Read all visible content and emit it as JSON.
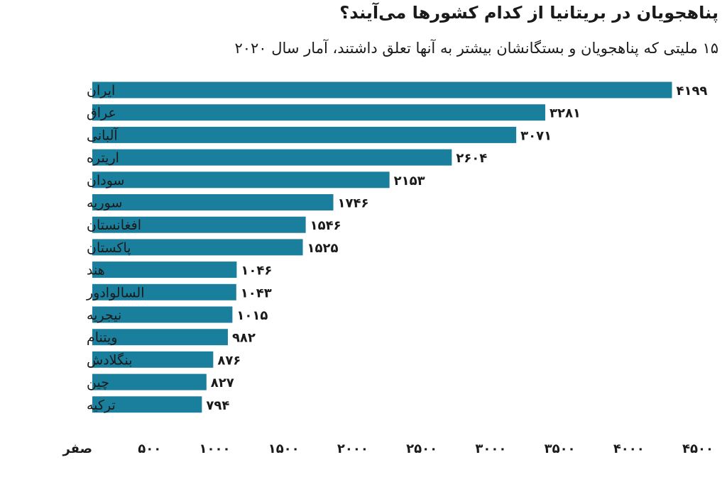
{
  "chart_data": {
    "type": "bar",
    "orientation": "horizontal",
    "title": "پناهجویان در بریتانیا از کدام کشورها می‌آیند؟",
    "subtitle": "۱۵ ملیتی که پناهجویان و بستگانشان بیشتر به آنها تعلق داشتند، آمار سال ۲۰۲۰",
    "categories": [
      "ایران",
      "عراق",
      "آلبانی",
      "اریتره",
      "سودان",
      "سوریه",
      "افغانستان",
      "پاکستان",
      "هند",
      "السالوادور",
      "نیجریه",
      "ویتنام",
      "بنگلادش",
      "چین",
      "ترکیه"
    ],
    "values": [
      4199,
      3281,
      3071,
      2604,
      2153,
      1746,
      1546,
      1525,
      1046,
      1043,
      1015,
      982,
      876,
      827,
      794
    ],
    "value_labels": [
      "۴۱۹۹",
      "۳۲۸۱",
      "۳۰۷۱",
      "۲۶۰۴",
      "۲۱۵۳",
      "۱۷۴۶",
      "۱۵۴۶",
      "۱۵۲۵",
      "۱۰۴۶",
      "۱۰۴۳",
      "۱۰۱۵",
      "۹۸۲",
      "۸۷۶",
      "۸۲۷",
      "۷۹۴"
    ],
    "xlim": [
      0,
      4500
    ],
    "xticks": [
      0,
      500,
      1000,
      1500,
      2000,
      2500,
      3000,
      3500,
      4000,
      4500
    ],
    "xtick_labels": [
      "صفر",
      "۵۰۰",
      "۱۰۰۰",
      "۱۵۰۰",
      "۲۰۰۰",
      "۲۵۰۰",
      "۳۰۰۰",
      "۳۵۰۰",
      "۴۰۰۰",
      "۴۵۰۰"
    ],
    "bar_color": "#1a7f9c",
    "grid": false,
    "legend": "none"
  }
}
